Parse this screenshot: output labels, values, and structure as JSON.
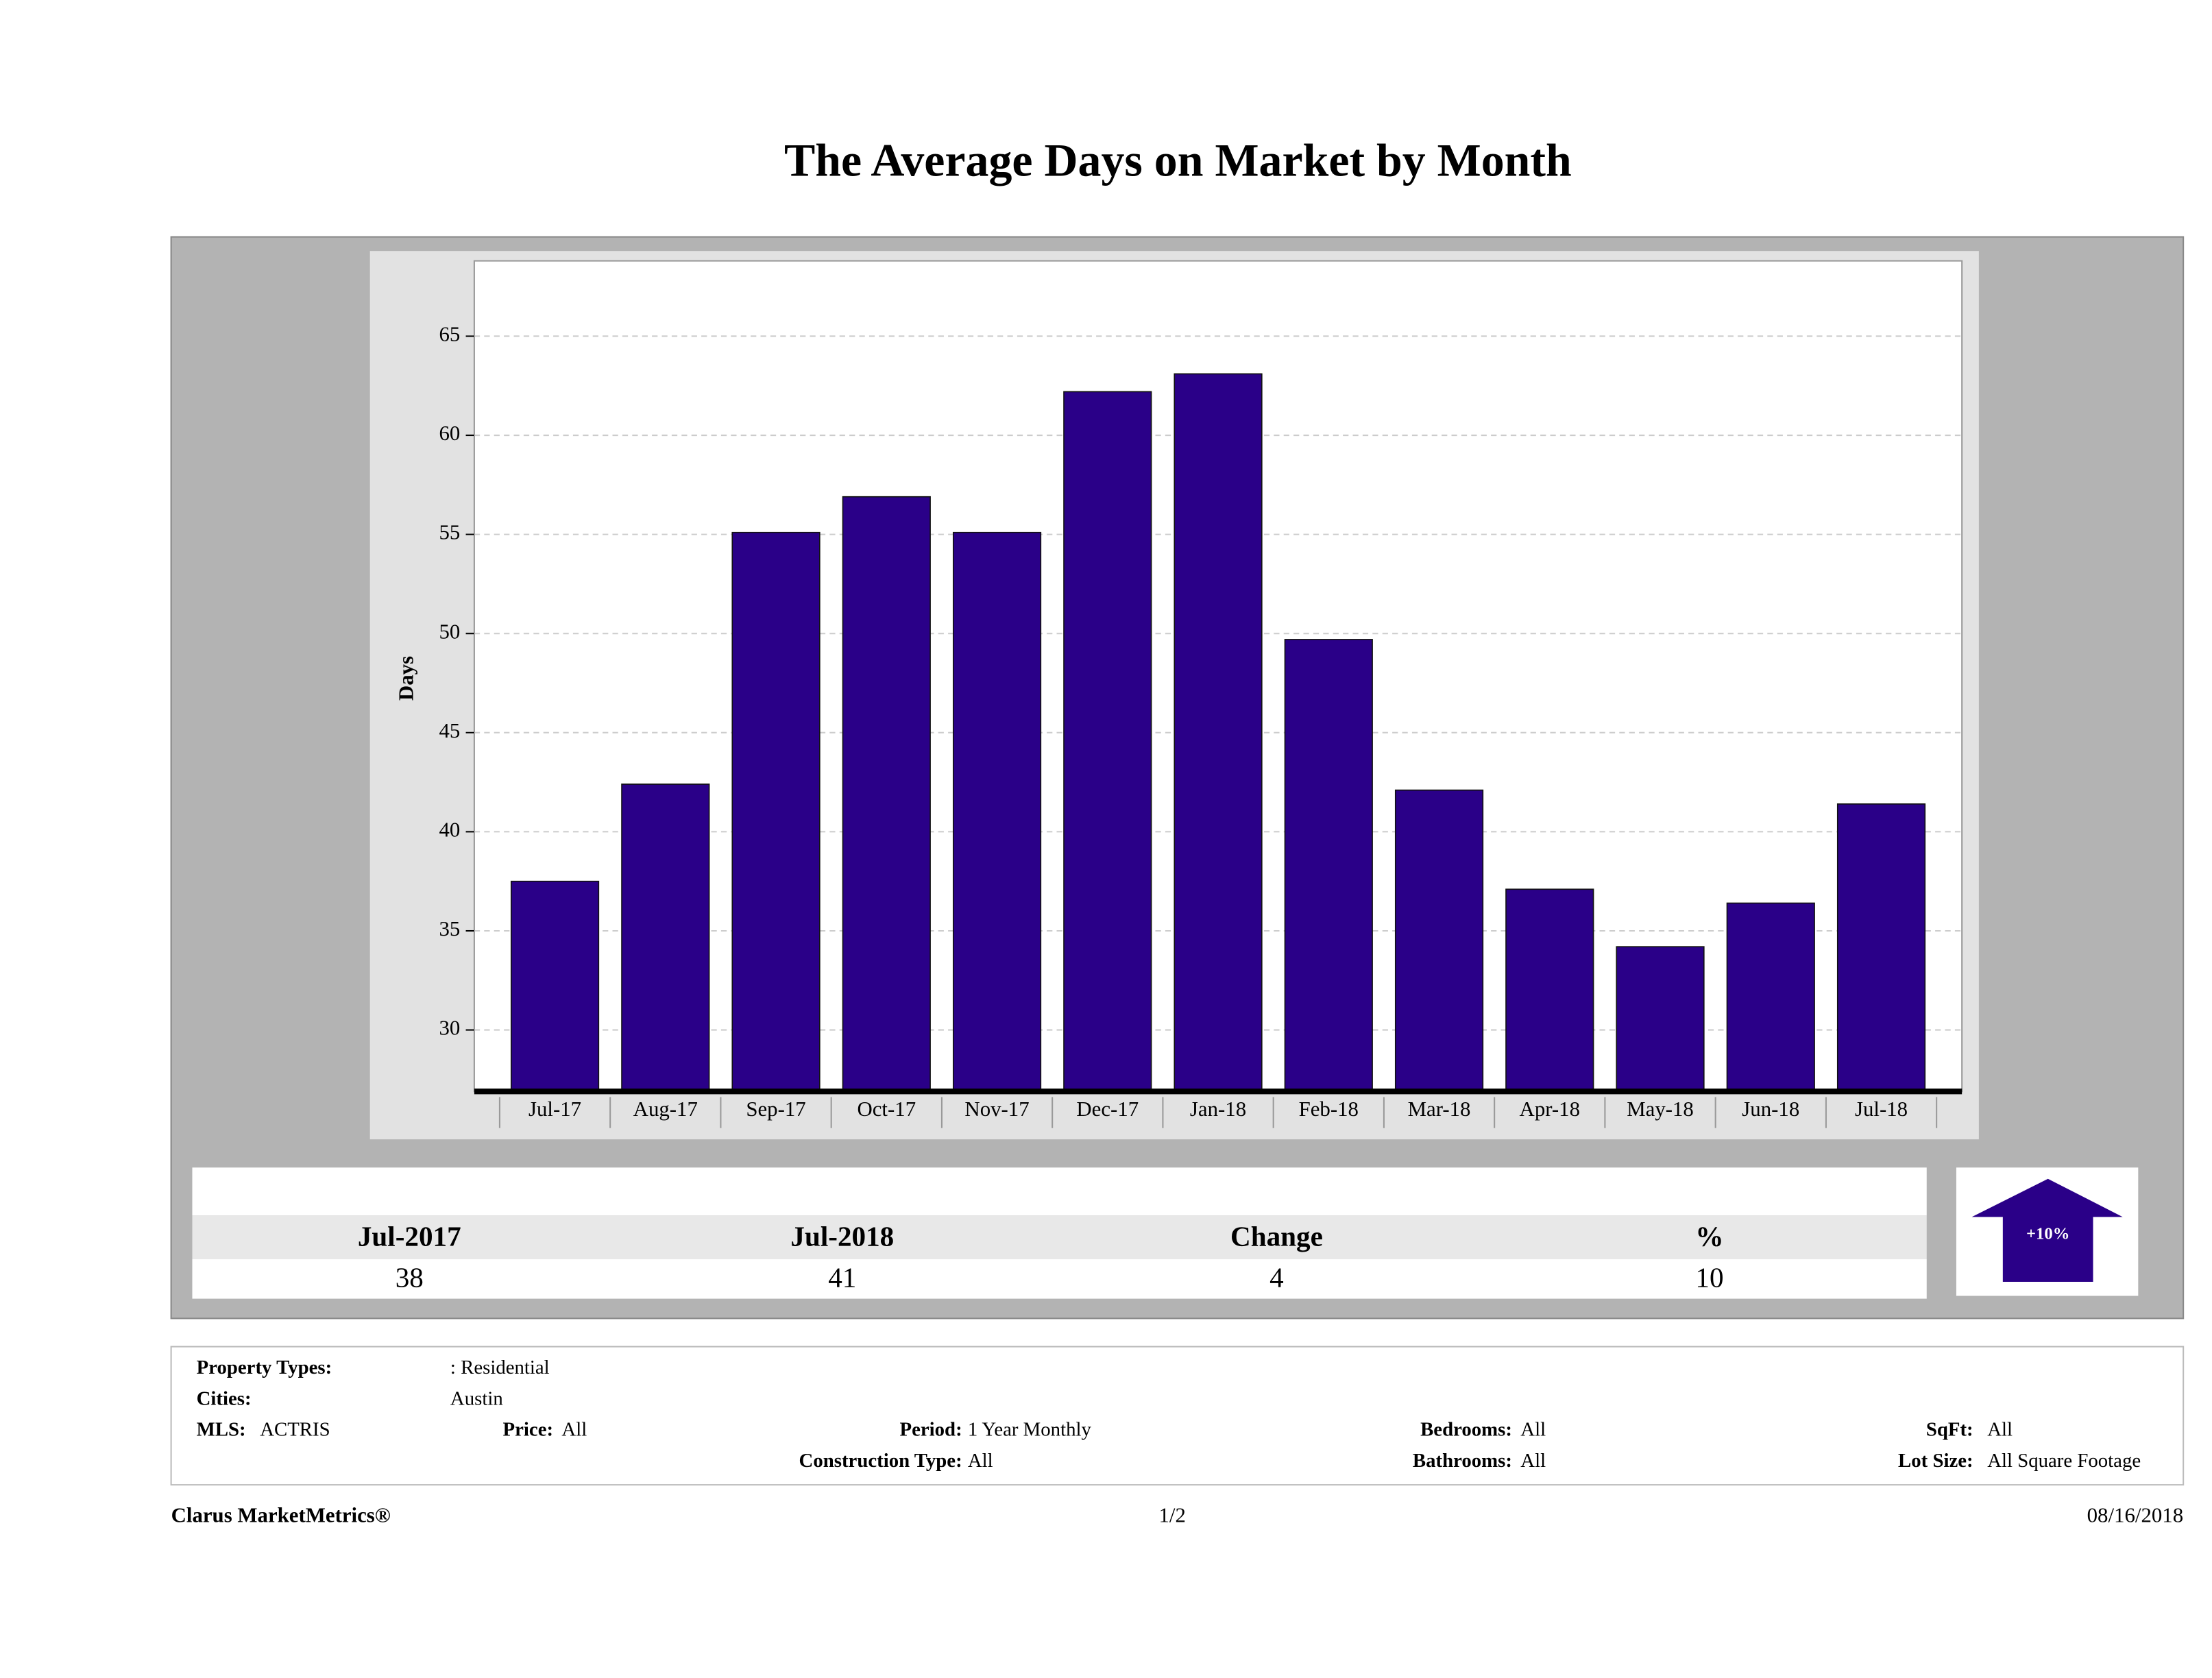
{
  "chart_data": {
    "type": "bar",
    "title": "The Average Days on Market by Month",
    "y_label": "Days",
    "categories": [
      "Jul-17",
      "Aug-17",
      "Sep-17",
      "Oct-17",
      "Nov-17",
      "Dec-17",
      "Jan-18",
      "Feb-18",
      "Mar-18",
      "Apr-18",
      "May-18",
      "Jun-18",
      "Jul-18"
    ],
    "values": [
      37.5,
      42.4,
      55.1,
      56.9,
      55.1,
      62.2,
      63.1,
      49.7,
      42.1,
      37.1,
      34.2,
      36.4,
      41.4
    ],
    "color": "#2a0088",
    "ylim": [
      26.9,
      68.8
    ],
    "yticks": [
      30,
      35,
      40,
      45,
      50,
      55,
      60,
      65
    ],
    "grid": true
  },
  "summary": {
    "headers": [
      "Jul-2017",
      "Jul-2018",
      "Change",
      "%"
    ],
    "values": [
      "38",
      "41",
      "4",
      "10"
    ],
    "arrow_label": "+10%"
  },
  "criteria": [
    {
      "label": "Property Types:",
      "value": ": Residential"
    },
    {
      "label": "Cities:",
      "value": "Austin"
    },
    {
      "label": "MLS:",
      "value": "ACTRIS"
    },
    {
      "label": "Price:",
      "value": "All"
    },
    {
      "label": "Period:",
      "value": "1 Year Monthly"
    },
    {
      "label": "Bedrooms:",
      "value": "All"
    },
    {
      "label": "SqFt:",
      "value": "All"
    },
    {
      "label": "Construction Type:",
      "value": "All"
    },
    {
      "label": "Bathrooms:",
      "value": "All"
    },
    {
      "label": "Lot Size:",
      "value": "All Square Footage"
    }
  ],
  "footer": {
    "brand": "Clarus MarketMetrics®",
    "page": "1/2",
    "date": "08/16/2018"
  }
}
